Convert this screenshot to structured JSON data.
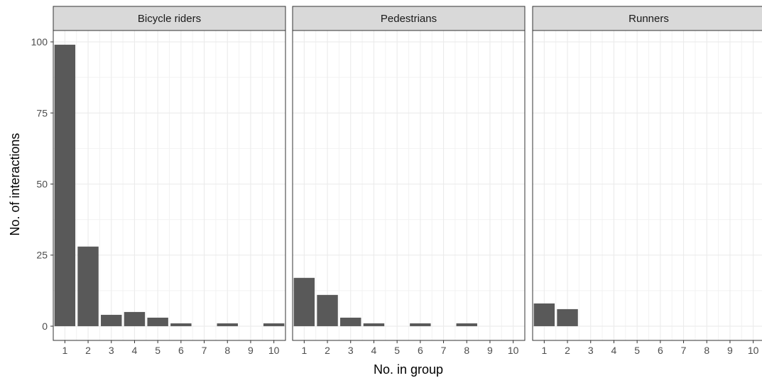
{
  "chart_data": {
    "type": "bar",
    "xlabel": "No. in group",
    "ylabel": "No. of interactions",
    "ylim": [
      -5,
      104
    ],
    "yticks": [
      0,
      25,
      50,
      75,
      100
    ],
    "xlim": [
      0.5,
      10.5
    ],
    "xticks": [
      1,
      2,
      3,
      4,
      5,
      6,
      7,
      8,
      9,
      10
    ],
    "grid": true,
    "bar_color": "#595959",
    "strip_color": "#d9d9d9",
    "panels": [
      {
        "title": "Bicycle riders",
        "x": [
          1,
          2,
          3,
          4,
          5,
          6,
          8,
          10
        ],
        "values": [
          99,
          28,
          4,
          5,
          3,
          1,
          1,
          1
        ]
      },
      {
        "title": "Pedestrians",
        "x": [
          1,
          2,
          3,
          4,
          6,
          8
        ],
        "values": [
          17,
          11,
          3,
          1,
          1,
          1
        ]
      },
      {
        "title": "Runners",
        "x": [
          1,
          2
        ],
        "values": [
          8,
          6
        ]
      }
    ]
  }
}
